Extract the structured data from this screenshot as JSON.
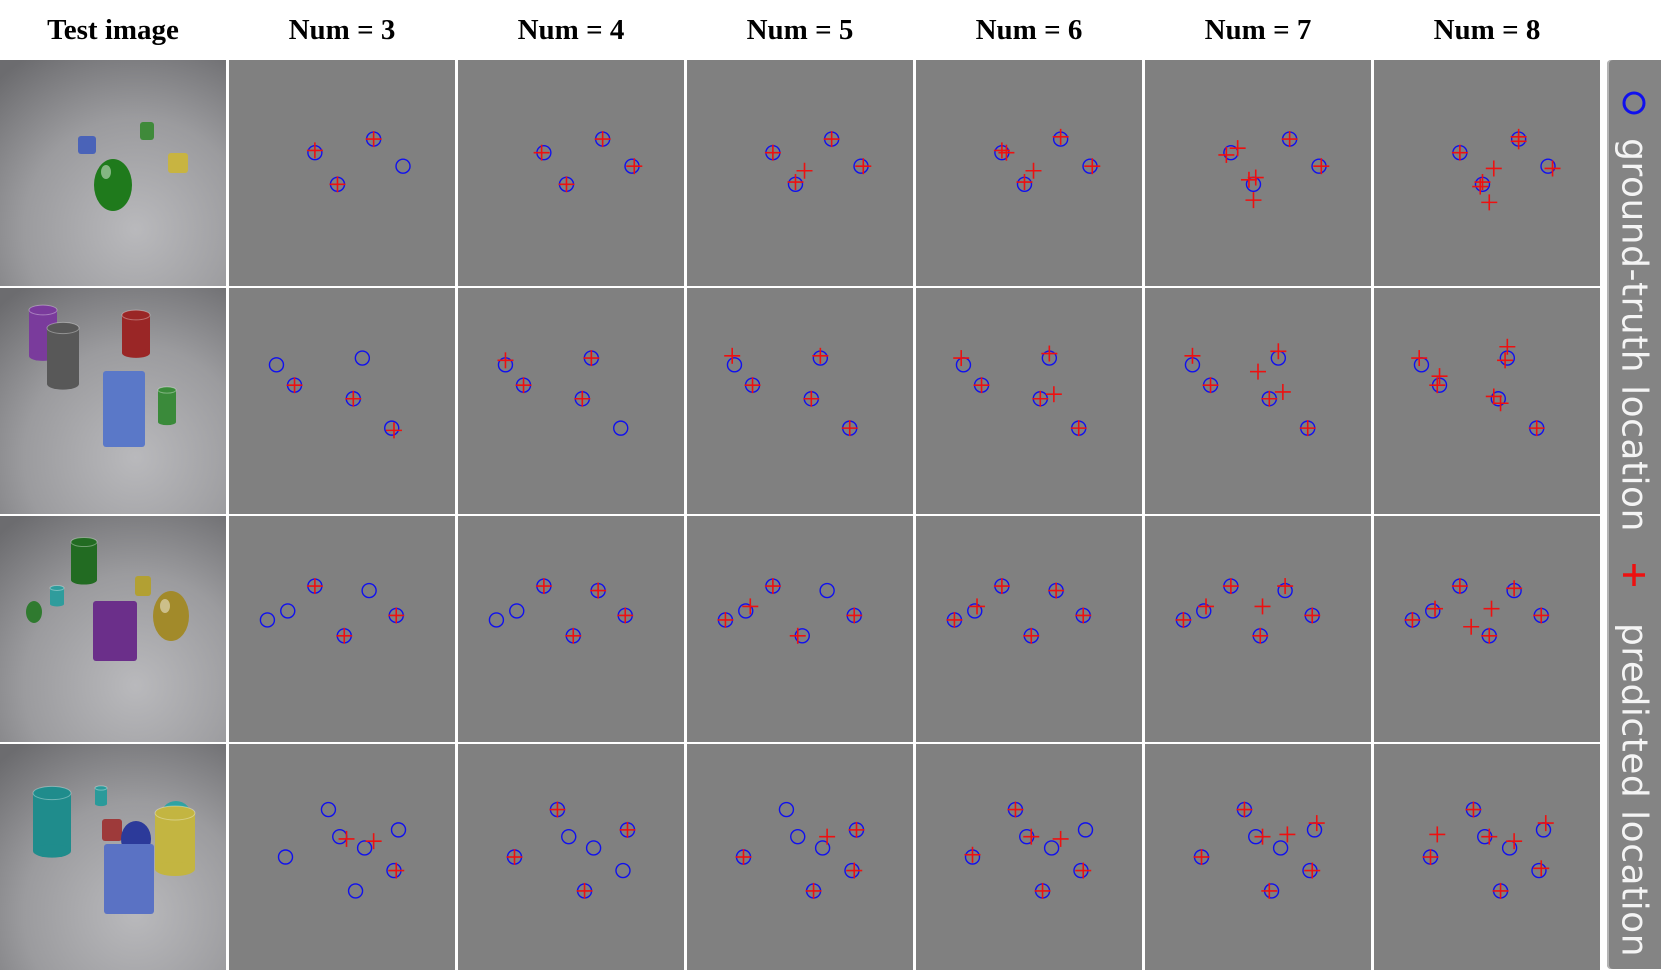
{
  "column_titles": [
    "Test image",
    "Num = 3",
    "Num = 4",
    "Num = 5",
    "Num = 6",
    "Num = 7",
    "Num = 8"
  ],
  "legend": {
    "ground_truth": {
      "label": "ground-truth location",
      "symbol": "circle",
      "color": "#1010ee"
    },
    "predicted": {
      "label": "predicted location",
      "symbol": "plus",
      "color": "#ee1010"
    }
  },
  "colors": {
    "panel_background": "#808080",
    "divider": "#ffffff",
    "gt_marker": "#1010ee",
    "pred_marker": "#ee1010"
  },
  "test_images": [
    {
      "row": 1,
      "scene": "rendered-3d-scene",
      "objects": [
        "green metallic egg",
        "blue cube",
        "green cube",
        "yellow cube"
      ]
    },
    {
      "row": 2,
      "scene": "rendered-3d-scene",
      "objects": [
        "purple cylinder",
        "gray metallic cylinder",
        "red metallic cylinder",
        "blue cube",
        "green cylinder"
      ]
    },
    {
      "row": 3,
      "scene": "rendered-3d-scene",
      "objects": [
        "green metallic cylinder",
        "teal cylinder",
        "green cylinder",
        "yellow cube",
        "purple metallic cube",
        "gold metallic egg"
      ]
    },
    {
      "row": 4,
      "scene": "rendered-3d-scene",
      "objects": [
        "teal metallic cylinder",
        "small teal cylinder",
        "red cube",
        "blue metallic sphere",
        "teal egg",
        "blue cube",
        "yellow cylinder"
      ]
    }
  ],
  "chart_data": {
    "type": "scatter",
    "description_units": "normalized location inside each square panel (0 = left/top, 1 = right/bottom)",
    "rows": [
      {
        "ground_truth": [
          [
            0.38,
            0.41
          ],
          [
            0.64,
            0.35
          ],
          [
            0.77,
            0.47
          ],
          [
            0.48,
            0.55
          ]
        ],
        "predictions": {
          "3": [
            [
              0.38,
              0.4
            ],
            [
              0.64,
              0.35
            ],
            [
              0.48,
              0.55
            ]
          ],
          "4": [
            [
              0.37,
              0.41
            ],
            [
              0.64,
              0.35
            ],
            [
              0.78,
              0.47
            ],
            [
              0.48,
              0.55
            ]
          ],
          "5": [
            [
              0.38,
              0.41
            ],
            [
              0.64,
              0.35
            ],
            [
              0.78,
              0.47
            ],
            [
              0.52,
              0.49
            ],
            [
              0.48,
              0.54
            ]
          ],
          "6": [
            [
              0.4,
              0.41
            ],
            [
              0.64,
              0.34
            ],
            [
              0.78,
              0.47
            ],
            [
              0.52,
              0.49
            ],
            [
              0.48,
              0.54
            ],
            [
              0.38,
              0.4
            ]
          ],
          "7": [
            [
              0.36,
              0.42
            ],
            [
              0.41,
              0.39
            ],
            [
              0.78,
              0.47
            ],
            [
              0.49,
              0.52
            ],
            [
              0.46,
              0.53
            ],
            [
              0.48,
              0.62
            ],
            [
              0.64,
              0.35
            ]
          ],
          "8": [
            [
              0.38,
              0.41
            ],
            [
              0.64,
              0.34
            ],
            [
              0.79,
              0.48
            ],
            [
              0.53,
              0.48
            ],
            [
              0.48,
              0.54
            ],
            [
              0.47,
              0.56
            ],
            [
              0.51,
              0.63
            ],
            [
              0.64,
              0.36
            ]
          ]
        }
      },
      {
        "ground_truth": [
          [
            0.21,
            0.34
          ],
          [
            0.29,
            0.43
          ],
          [
            0.59,
            0.31
          ],
          [
            0.55,
            0.49
          ],
          [
            0.72,
            0.62
          ]
        ],
        "predictions": {
          "3": [
            [
              0.29,
              0.43
            ],
            [
              0.55,
              0.49
            ],
            [
              0.73,
              0.63
            ]
          ],
          "4": [
            [
              0.21,
              0.32
            ],
            [
              0.29,
              0.43
            ],
            [
              0.59,
              0.31
            ],
            [
              0.55,
              0.49
            ]
          ],
          "5": [
            [
              0.2,
              0.3
            ],
            [
              0.29,
              0.43
            ],
            [
              0.59,
              0.3
            ],
            [
              0.55,
              0.49
            ],
            [
              0.72,
              0.62
            ]
          ],
          "6": [
            [
              0.2,
              0.31
            ],
            [
              0.29,
              0.43
            ],
            [
              0.59,
              0.29
            ],
            [
              0.55,
              0.49
            ],
            [
              0.61,
              0.47
            ],
            [
              0.72,
              0.62
            ]
          ],
          "7": [
            [
              0.21,
              0.3
            ],
            [
              0.29,
              0.43
            ],
            [
              0.59,
              0.28
            ],
            [
              0.5,
              0.37
            ],
            [
              0.61,
              0.46
            ],
            [
              0.55,
              0.49
            ],
            [
              0.72,
              0.62
            ]
          ],
          "8": [
            [
              0.2,
              0.31
            ],
            [
              0.29,
              0.39
            ],
            [
              0.28,
              0.43
            ],
            [
              0.59,
              0.26
            ],
            [
              0.58,
              0.32
            ],
            [
              0.53,
              0.48
            ],
            [
              0.56,
              0.51
            ],
            [
              0.72,
              0.62
            ]
          ]
        }
      },
      {
        "ground_truth": [
          [
            0.17,
            0.46
          ],
          [
            0.26,
            0.42
          ],
          [
            0.38,
            0.31
          ],
          [
            0.62,
            0.33
          ],
          [
            0.74,
            0.44
          ],
          [
            0.51,
            0.53
          ]
        ],
        "predictions": {
          "3": [
            [
              0.38,
              0.31
            ],
            [
              0.74,
              0.44
            ],
            [
              0.51,
              0.53
            ]
          ],
          "4": [
            [
              0.38,
              0.31
            ],
            [
              0.62,
              0.33
            ],
            [
              0.74,
              0.44
            ],
            [
              0.51,
              0.53
            ]
          ],
          "5": [
            [
              0.17,
              0.46
            ],
            [
              0.28,
              0.4
            ],
            [
              0.38,
              0.31
            ],
            [
              0.74,
              0.44
            ],
            [
              0.49,
              0.53
            ]
          ],
          "6": [
            [
              0.17,
              0.46
            ],
            [
              0.27,
              0.4
            ],
            [
              0.38,
              0.31
            ],
            [
              0.62,
              0.33
            ],
            [
              0.74,
              0.44
            ],
            [
              0.51,
              0.53
            ]
          ],
          "7": [
            [
              0.17,
              0.46
            ],
            [
              0.27,
              0.4
            ],
            [
              0.38,
              0.31
            ],
            [
              0.52,
              0.4
            ],
            [
              0.62,
              0.31
            ],
            [
              0.74,
              0.44
            ],
            [
              0.51,
              0.53
            ]
          ],
          "8": [
            [
              0.17,
              0.46
            ],
            [
              0.27,
              0.41
            ],
            [
              0.38,
              0.31
            ],
            [
              0.62,
              0.32
            ],
            [
              0.52,
              0.41
            ],
            [
              0.43,
              0.49
            ],
            [
              0.74,
              0.44
            ],
            [
              0.51,
              0.53
            ]
          ]
        }
      },
      {
        "ground_truth": [
          [
            0.44,
            0.29
          ],
          [
            0.25,
            0.5
          ],
          [
            0.49,
            0.41
          ],
          [
            0.6,
            0.46
          ],
          [
            0.75,
            0.38
          ],
          [
            0.56,
            0.65
          ],
          [
            0.73,
            0.56
          ]
        ],
        "predictions": {
          "3": [
            [
              0.52,
              0.42
            ],
            [
              0.64,
              0.43
            ],
            [
              0.74,
              0.56
            ]
          ],
          "4": [
            [
              0.44,
              0.29
            ],
            [
              0.25,
              0.5
            ],
            [
              0.75,
              0.38
            ],
            [
              0.56,
              0.65
            ]
          ],
          "5": [
            [
              0.25,
              0.5
            ],
            [
              0.62,
              0.41
            ],
            [
              0.75,
              0.38
            ],
            [
              0.56,
              0.65
            ],
            [
              0.74,
              0.56
            ]
          ],
          "6": [
            [
              0.44,
              0.29
            ],
            [
              0.25,
              0.49
            ],
            [
              0.51,
              0.41
            ],
            [
              0.64,
              0.42
            ],
            [
              0.56,
              0.65
            ],
            [
              0.74,
              0.56
            ]
          ],
          "7": [
            [
              0.44,
              0.29
            ],
            [
              0.25,
              0.5
            ],
            [
              0.52,
              0.41
            ],
            [
              0.63,
              0.4
            ],
            [
              0.76,
              0.35
            ],
            [
              0.55,
              0.65
            ],
            [
              0.74,
              0.56
            ]
          ],
          "8": [
            [
              0.44,
              0.29
            ],
            [
              0.28,
              0.4
            ],
            [
              0.25,
              0.5
            ],
            [
              0.51,
              0.41
            ],
            [
              0.62,
              0.43
            ],
            [
              0.76,
              0.35
            ],
            [
              0.56,
              0.65
            ],
            [
              0.74,
              0.55
            ]
          ]
        }
      }
    ]
  }
}
